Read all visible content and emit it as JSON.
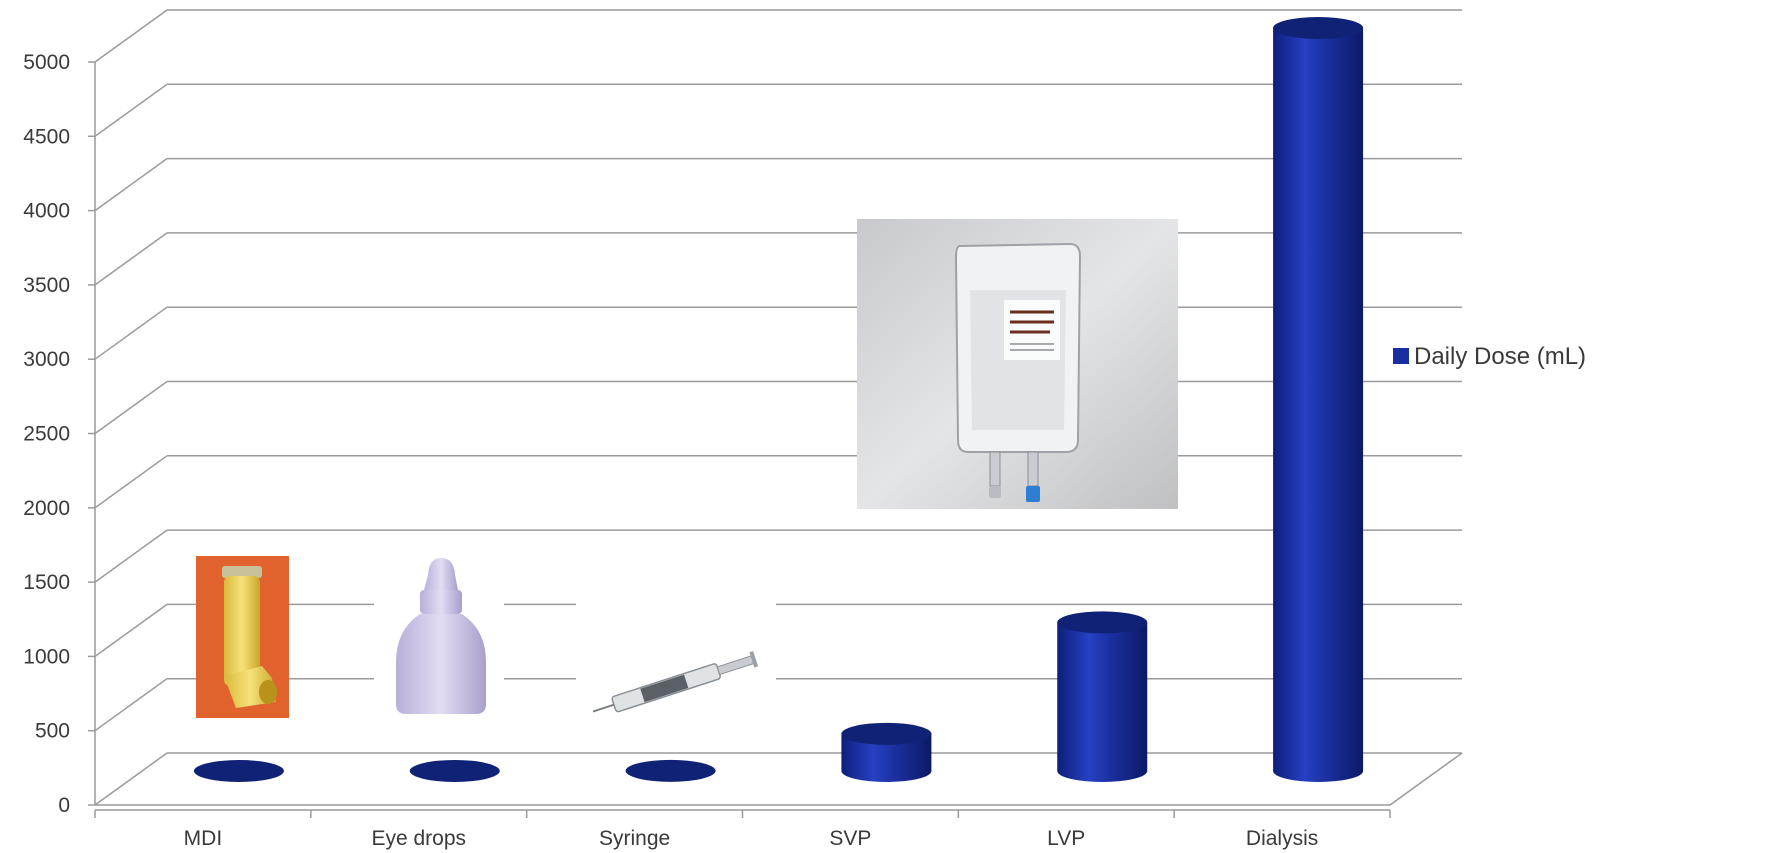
{
  "chart_data": {
    "type": "bar",
    "style": "3d-cylinder",
    "categories": [
      "MDI",
      "Eye drops",
      "Syringe",
      "SVP",
      "LVP",
      "Dialysis"
    ],
    "series": [
      {
        "name": "Daily Dose (mL)",
        "values": [
          0.1,
          0.2,
          1,
          250,
          1000,
          5000
        ],
        "color": "#1a2f9e"
      }
    ],
    "yticks": [
      0,
      500,
      1000,
      1500,
      2000,
      2500,
      3000,
      3500,
      4000,
      4500,
      5000
    ],
    "ylim": [
      0,
      5000
    ],
    "grid": true,
    "legend_position": "right",
    "product_images": [
      "inhaler",
      "eye-drop-bottle",
      "syringe",
      "iv-bag"
    ]
  }
}
